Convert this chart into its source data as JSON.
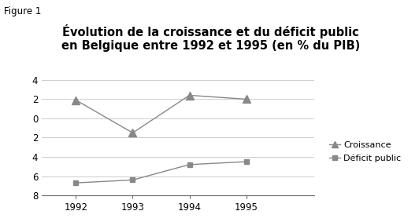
{
  "title": "Évolution de la croissance et du déficit public\nen Belgique entre 1992 et 1995 (en % du PIB)",
  "figure_label": "Figure 1",
  "years": [
    1992,
    1993,
    1994,
    1995
  ],
  "croissance": [
    1.9,
    -1.5,
    2.4,
    2.0
  ],
  "deficit": [
    -6.7,
    -6.4,
    -4.8,
    -4.5
  ],
  "ylim": [
    -8,
    4
  ],
  "yticks": [
    -8,
    -6,
    -4,
    -2,
    0,
    2,
    4
  ],
  "ytick_labels": [
    "8",
    "6",
    "4",
    "2",
    "0",
    "2",
    "4"
  ],
  "line_color": "#888888",
  "legend_croissance": "Croissance",
  "legend_deficit": "Déficit public",
  "title_fontsize": 10.5,
  "label_fontsize": 8.5,
  "tick_fontsize": 8.5,
  "xlim": [
    1991.4,
    1996.2
  ]
}
